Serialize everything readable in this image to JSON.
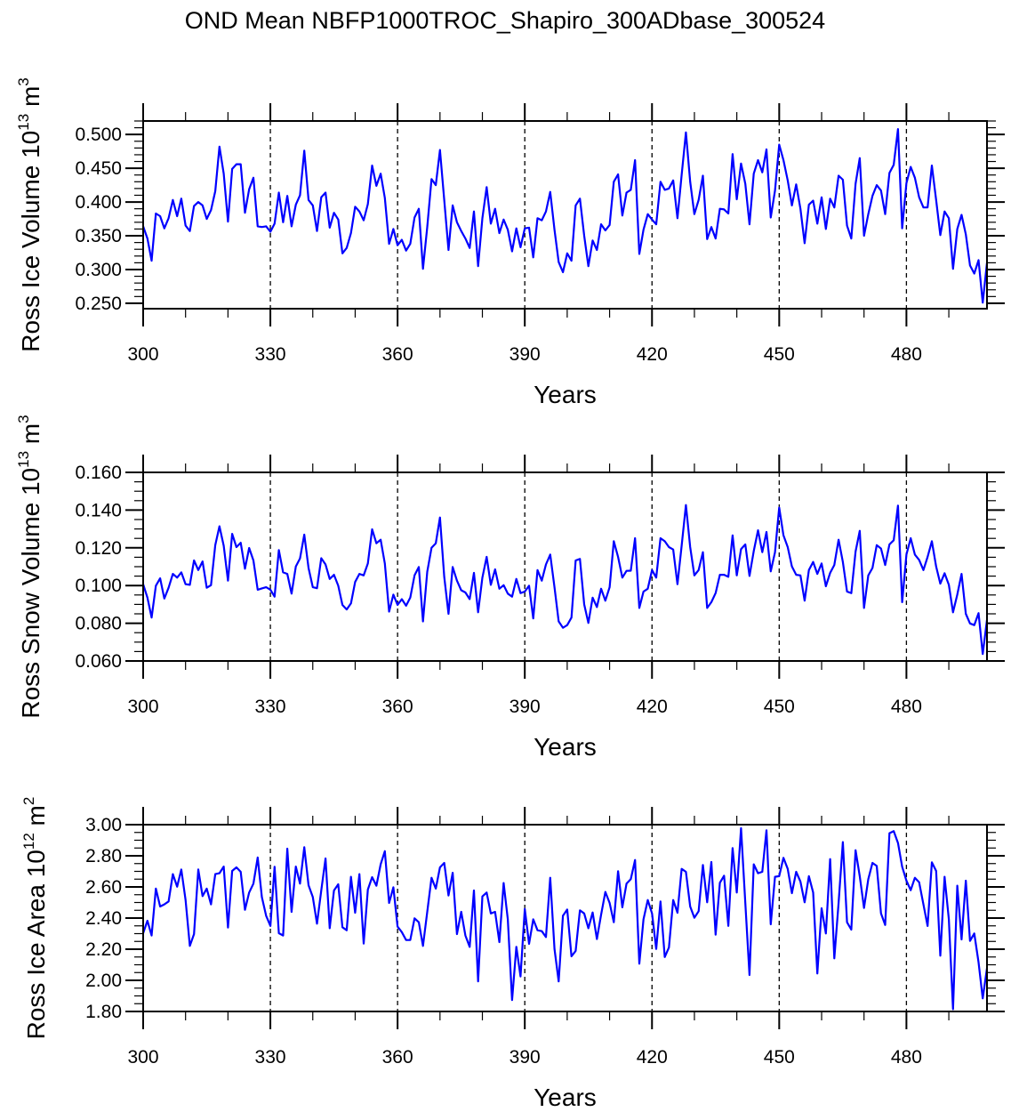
{
  "title": "OND Mean NBFP1000TROC_Shapiro_300ADbase_300524",
  "colors": {
    "line": "#0000ff",
    "axis": "#000000",
    "reference": "#000000",
    "background": "#ffffff"
  },
  "chart_data": [
    {
      "type": "line",
      "name": "ross-ice-volume",
      "ylabel": {
        "main": "Ross Ice Volume 10",
        "exp": "13",
        "unit": " m",
        "unit_exp": "3"
      },
      "xlabel": "Years",
      "xlim": [
        300,
        499
      ],
      "ylim": [
        0.242,
        0.52
      ],
      "xticks": [
        "300",
        "330",
        "360",
        "390",
        "420",
        "450",
        "480"
      ],
      "xtick_values": [
        300,
        330,
        360,
        390,
        420,
        450,
        480
      ],
      "yticks": [
        "0.250",
        "0.300",
        "0.350",
        "0.400",
        "0.450",
        "0.500"
      ],
      "ytick_values": [
        0.25,
        0.3,
        0.35,
        0.4,
        0.45,
        0.5
      ],
      "ytick_minor_step": 0.01,
      "reference_lines_x": [
        330,
        360,
        390,
        420,
        450,
        480
      ],
      "x_start": 300,
      "values": [
        0.364,
        0.346,
        0.313,
        0.383,
        0.379,
        0.361,
        0.376,
        0.403,
        0.379,
        0.405,
        0.365,
        0.357,
        0.394,
        0.4,
        0.395,
        0.375,
        0.388,
        0.416,
        0.482,
        0.442,
        0.371,
        0.449,
        0.456,
        0.456,
        0.384,
        0.419,
        0.436,
        0.364,
        0.363,
        0.364,
        0.356,
        0.368,
        0.414,
        0.37,
        0.409,
        0.364,
        0.396,
        0.41,
        0.476,
        0.403,
        0.395,
        0.357,
        0.407,
        0.414,
        0.362,
        0.384,
        0.374,
        0.324,
        0.332,
        0.354,
        0.393,
        0.386,
        0.373,
        0.397,
        0.454,
        0.424,
        0.442,
        0.406,
        0.338,
        0.36,
        0.336,
        0.344,
        0.328,
        0.338,
        0.377,
        0.39,
        0.301,
        0.363,
        0.434,
        0.425,
        0.477,
        0.403,
        0.329,
        0.395,
        0.37,
        0.357,
        0.346,
        0.332,
        0.386,
        0.305,
        0.376,
        0.422,
        0.368,
        0.39,
        0.354,
        0.374,
        0.359,
        0.327,
        0.361,
        0.333,
        0.361,
        0.362,
        0.318,
        0.376,
        0.373,
        0.386,
        0.415,
        0.359,
        0.311,
        0.296,
        0.324,
        0.313,
        0.395,
        0.405,
        0.35,
        0.305,
        0.343,
        0.329,
        0.367,
        0.358,
        0.366,
        0.43,
        0.441,
        0.38,
        0.414,
        0.418,
        0.462,
        0.323,
        0.359,
        0.382,
        0.374,
        0.367,
        0.43,
        0.418,
        0.42,
        0.432,
        0.376,
        0.44,
        0.503,
        0.43,
        0.382,
        0.403,
        0.439,
        0.345,
        0.363,
        0.346,
        0.39,
        0.389,
        0.383,
        0.471,
        0.404,
        0.457,
        0.427,
        0.367,
        0.442,
        0.462,
        0.444,
        0.478,
        0.377,
        0.417,
        0.485,
        0.462,
        0.432,
        0.395,
        0.426,
        0.39,
        0.339,
        0.396,
        0.402,
        0.368,
        0.407,
        0.36,
        0.405,
        0.392,
        0.439,
        0.433,
        0.365,
        0.346,
        0.427,
        0.465,
        0.35,
        0.382,
        0.409,
        0.425,
        0.417,
        0.382,
        0.443,
        0.455,
        0.508,
        0.361,
        0.428,
        0.452,
        0.436,
        0.407,
        0.392,
        0.392,
        0.454,
        0.403,
        0.351,
        0.386,
        0.376,
        0.301,
        0.36,
        0.381,
        0.352,
        0.306,
        0.294,
        0.314,
        0.251,
        0.31
      ]
    },
    {
      "type": "line",
      "name": "ross-snow-volume",
      "ylabel": {
        "main": "Ross Snow Volume 10",
        "exp": "13",
        "unit": " m",
        "unit_exp": "3"
      },
      "xlabel": "Years",
      "xlim": [
        300,
        499
      ],
      "ylim": [
        0.06,
        0.16
      ],
      "xticks": [
        "300",
        "330",
        "360",
        "390",
        "420",
        "450",
        "480"
      ],
      "xtick_values": [
        300,
        330,
        360,
        390,
        420,
        450,
        480
      ],
      "yticks": [
        "0.060",
        "0.080",
        "0.100",
        "0.120",
        "0.140",
        "0.160"
      ],
      "ytick_values": [
        0.06,
        0.08,
        0.1,
        0.12,
        0.14,
        0.16
      ],
      "ytick_minor_step": 0.005,
      "reference_lines_x": [
        330,
        360,
        390,
        420,
        450,
        480
      ],
      "x_start": 300,
      "values": [
        0.1007,
        0.0936,
        0.083,
        0.0999,
        0.1038,
        0.0931,
        0.0988,
        0.1062,
        0.1042,
        0.107,
        0.1007,
        0.1004,
        0.1133,
        0.1082,
        0.1128,
        0.0988,
        0.1002,
        0.1214,
        0.1314,
        0.1211,
        0.1026,
        0.1274,
        0.1204,
        0.1227,
        0.1089,
        0.1199,
        0.1133,
        0.0978,
        0.0985,
        0.0991,
        0.0978,
        0.0941,
        0.1188,
        0.107,
        0.1062,
        0.0957,
        0.1101,
        0.1144,
        0.127,
        0.1093,
        0.0991,
        0.0986,
        0.1145,
        0.1112,
        0.1035,
        0.1057,
        0.0999,
        0.0897,
        0.0873,
        0.0905,
        0.1019,
        0.1062,
        0.1054,
        0.1117,
        0.1298,
        0.1224,
        0.1243,
        0.1117,
        0.0862,
        0.0952,
        0.0897,
        0.0928,
        0.0893,
        0.0936,
        0.1054,
        0.1098,
        0.081,
        0.1073,
        0.12,
        0.1224,
        0.1361,
        0.1046,
        0.085,
        0.1098,
        0.1026,
        0.0975,
        0.0963,
        0.0928,
        0.1067,
        0.0858,
        0.1042,
        0.1152,
        0.1004,
        0.1086,
        0.0983,
        0.1002,
        0.0957,
        0.0941,
        0.1035,
        0.096,
        0.0968,
        0.0999,
        0.0826,
        0.1082,
        0.1026,
        0.1112,
        0.1164,
        0.0991,
        0.081,
        0.0776,
        0.079,
        0.083,
        0.1133,
        0.1141,
        0.09,
        0.0802,
        0.0936,
        0.0886,
        0.0983,
        0.092,
        0.0991,
        0.1235,
        0.1152,
        0.1042,
        0.1078,
        0.1079,
        0.1251,
        0.0881,
        0.0968,
        0.0983,
        0.1082,
        0.1042,
        0.1251,
        0.1235,
        0.1204,
        0.1191,
        0.1007,
        0.1211,
        0.1427,
        0.1204,
        0.1054,
        0.1082,
        0.1177,
        0.0881,
        0.0912,
        0.096,
        0.1057,
        0.1057,
        0.1046,
        0.1266,
        0.1054,
        0.1193,
        0.1218,
        0.1051,
        0.1183,
        0.1293,
        0.1177,
        0.1284,
        0.1075,
        0.1177,
        0.1413,
        0.1266,
        0.1204,
        0.1101,
        0.1057,
        0.1054,
        0.092,
        0.1082,
        0.1125,
        0.1062,
        0.1117,
        0.0996,
        0.1067,
        0.1109,
        0.1243,
        0.1125,
        0.0968,
        0.096,
        0.118,
        0.129,
        0.0881,
        0.1054,
        0.1093,
        0.1214,
        0.1196,
        0.1109,
        0.1218,
        0.124,
        0.1424,
        0.0912,
        0.1164,
        0.1251,
        0.1164,
        0.1136,
        0.1082,
        0.1152,
        0.1235,
        0.1101,
        0.101,
        0.1065,
        0.1004,
        0.0858,
        0.0952,
        0.1062,
        0.085,
        0.0799,
        0.079,
        0.0854,
        0.0637,
        0.0818
      ]
    },
    {
      "type": "line",
      "name": "ross-ice-area",
      "ylabel": {
        "main": "Ross Ice Area 10",
        "exp": "12",
        "unit": " m",
        "unit_exp": "2"
      },
      "xlabel": "Years",
      "xlim": [
        300,
        499
      ],
      "ylim": [
        1.8,
        3.0
      ],
      "xticks": [
        "300",
        "330",
        "360",
        "390",
        "420",
        "450",
        "480"
      ],
      "xtick_values": [
        300,
        330,
        360,
        390,
        420,
        450,
        480
      ],
      "yticks": [
        "1.80",
        "2.00",
        "2.20",
        "2.40",
        "2.60",
        "2.80",
        "3.00"
      ],
      "ytick_values": [
        1.8,
        2.0,
        2.2,
        2.4,
        2.6,
        2.8,
        3.0
      ],
      "ytick_minor_step": 0.05,
      "reference_lines_x": [
        330,
        360,
        390,
        420,
        450,
        480
      ],
      "x_start": 300,
      "values": [
        2.303,
        2.383,
        2.288,
        2.589,
        2.474,
        2.488,
        2.507,
        2.682,
        2.602,
        2.712,
        2.516,
        2.221,
        2.297,
        2.712,
        2.541,
        2.589,
        2.488,
        2.682,
        2.688,
        2.731,
        2.339,
        2.703,
        2.726,
        2.697,
        2.453,
        2.564,
        2.621,
        2.789,
        2.535,
        2.415,
        2.35,
        2.73,
        2.303,
        2.288,
        2.846,
        2.44,
        2.731,
        2.621,
        2.855,
        2.611,
        2.535,
        2.364,
        2.577,
        2.783,
        2.335,
        2.577,
        2.617,
        2.341,
        2.322,
        2.665,
        2.434,
        2.682,
        2.236,
        2.583,
        2.663,
        2.608,
        2.745,
        2.83,
        2.497,
        2.598,
        2.345,
        2.31,
        2.259,
        2.259,
        2.398,
        2.373,
        2.221,
        2.44,
        2.659,
        2.589,
        2.726,
        2.754,
        2.545,
        2.691,
        2.297,
        2.44,
        2.288,
        2.215,
        2.577,
        1.993,
        2.539,
        2.564,
        2.43,
        2.44,
        2.246,
        2.625,
        2.392,
        1.873,
        2.215,
        2.025,
        2.459,
        2.234,
        2.392,
        2.322,
        2.316,
        2.278,
        2.659,
        2.202,
        1.993,
        2.415,
        2.455,
        2.154,
        2.189,
        2.45,
        2.43,
        2.335,
        2.436,
        2.265,
        2.421,
        2.568,
        2.497,
        2.373,
        2.701,
        2.469,
        2.621,
        2.65,
        2.773,
        2.107,
        2.392,
        2.516,
        2.43,
        2.202,
        2.507,
        2.15,
        2.211,
        2.516,
        2.434,
        2.716,
        2.697,
        2.474,
        2.402,
        2.444,
        2.741,
        2.501,
        2.76,
        2.293,
        2.627,
        2.672,
        2.35,
        2.85,
        2.564,
        2.977,
        2.497,
        2.034,
        2.745,
        2.688,
        2.697,
        2.964,
        2.36,
        2.665,
        2.669,
        2.787,
        2.716,
        2.56,
        2.697,
        2.634,
        2.501,
        2.669,
        2.564,
        2.044,
        2.463,
        2.301,
        2.779,
        2.141,
        2.497,
        2.888,
        2.373,
        2.326,
        2.836,
        2.669,
        2.465,
        2.65,
        2.754,
        2.735,
        2.43,
        2.356,
        2.945,
        2.958,
        2.882,
        2.73,
        2.64,
        2.579,
        2.659,
        2.63,
        2.488,
        2.349,
        2.758,
        2.703,
        2.158,
        2.665,
        2.392,
        1.815,
        2.608,
        2.263,
        2.64,
        2.253,
        2.301,
        2.116,
        1.884,
        2.078
      ]
    }
  ]
}
